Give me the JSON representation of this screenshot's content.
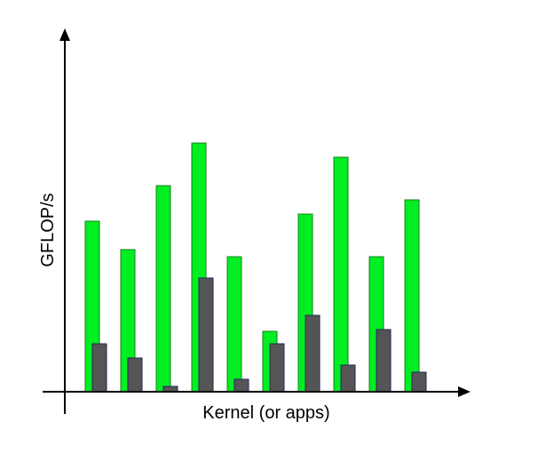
{
  "chart_data": {
    "type": "bar",
    "title": "",
    "xlabel": "Kernel (or apps)",
    "ylabel": "GFLOP/s",
    "categories": [
      "",
      "",
      "",
      "",
      "",
      "",
      "",
      "",
      "",
      ""
    ],
    "series": [
      {
        "values": [
          48,
          40,
          58,
          70,
          38,
          17,
          50,
          66,
          38,
          54
        ]
      },
      {
        "values": [
          13.5,
          9.5,
          1.5,
          32,
          3.5,
          13.5,
          21.5,
          7.5,
          17.5,
          5.5
        ]
      }
    ],
    "ylim": [
      0,
      100
    ],
    "grid": false,
    "legend": "none",
    "colors": {
      "series_1_fill": "#00ee22",
      "series_1_stroke": "#1a7f1a",
      "series_2_fill": "#555555",
      "series_2_stroke": "#1f2a55",
      "axis": "#000000"
    }
  }
}
